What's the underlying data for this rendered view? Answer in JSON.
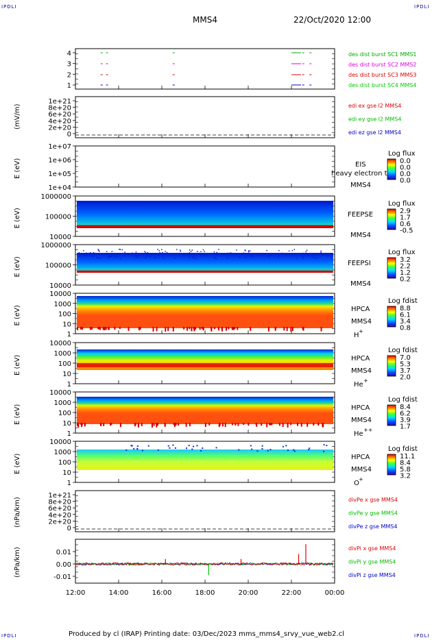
{
  "corner_label": "IPDLI",
  "header": {
    "spacecraft": "MMS4",
    "datetime": "22/Oct/2020 12:00"
  },
  "footer": {
    "text": "Produced by cl (IRAP)   Printing date: 03/Dec/2023   mms_mms4_srvy_vue_web2.cl"
  },
  "x_axis": {
    "ticks": [
      "12:00",
      "14:00",
      "16:00",
      "18:00",
      "20:00",
      "22:00",
      "00:00"
    ]
  },
  "chart_data": [
    {
      "type": "scatter",
      "yticks": [
        "4",
        "3",
        "2",
        "1"
      ],
      "legend": [
        {
          "name": "des dist burst SC1 MMS1",
          "color": "#00aa00"
        },
        {
          "name": "des dist burst SC2 MMS2",
          "color": "#dd00dd"
        },
        {
          "name": "des dist burst SC3 MMS3",
          "color": "#dd0000"
        },
        {
          "name": "des dist burst SC4 MMS4",
          "color": "#00cc00"
        }
      ],
      "bursts": [
        {
          "x": [
            "13:10",
            "13:25",
            "16:30",
            "22:00",
            "22:30",
            "22:50"
          ]
        }
      ]
    },
    {
      "type": "line",
      "ylabel": "(mV/m)",
      "yticks": [
        "1e+21",
        "8e+20",
        "6e+20",
        "4e+20",
        "2e+20",
        "0"
      ],
      "legend": [
        {
          "name": "edi ex gse l2 MMS4",
          "color": "#dd0000"
        },
        {
          "name": "edi ey gse l2 MMS4",
          "color": "#00bb00"
        },
        {
          "name": "edi ez gse l2 MMS4",
          "color": "#0000cc"
        }
      ]
    },
    {
      "type": "heatmap",
      "ylabel": "E (eV)",
      "yticks": [
        "1e+07",
        "1e+06",
        "1e+05",
        "1e+04"
      ],
      "instrument": "EIS",
      "note": "heavy electron t",
      "sc": "MMS4",
      "cbar_title": "Log flux",
      "cbar_ticks": [
        "0.0",
        "0.0",
        "0.0",
        "0.0"
      ]
    },
    {
      "type": "heatmap",
      "ylabel": "E (eV)",
      "yticks": [
        "1000000",
        "100000",
        "10000"
      ],
      "instrument": "FEEPSE",
      "sc": "MMS4",
      "cbar_title": "Log flux",
      "cbar_ticks": [
        "2.9",
        "1.7",
        "0.6",
        "-0.5"
      ]
    },
    {
      "type": "heatmap",
      "ylabel": "E (eV)",
      "yticks": [
        "1000000",
        "100000",
        "10000"
      ],
      "instrument": "FEEPSI",
      "sc": "MMS4",
      "cbar_title": "Log flux",
      "cbar_ticks": [
        "3.2",
        "2.2",
        "1.2",
        "0.2"
      ]
    },
    {
      "type": "heatmap",
      "ylabel": "E (eV)",
      "yticks": [
        "10000",
        "1000",
        "100",
        "10",
        "1"
      ],
      "instrument": "HPCA",
      "sc": "MMS4",
      "species": "H",
      "charge": "+",
      "cbar_title": "Log fdist",
      "cbar_ticks": [
        "8.8",
        "6.1",
        "3.4",
        "0.8"
      ]
    },
    {
      "type": "heatmap",
      "ylabel": "E (eV)",
      "yticks": [
        "10000",
        "1000",
        "100",
        "10",
        "1"
      ],
      "instrument": "HPCA",
      "sc": "MMS4",
      "species": "He",
      "charge": "+",
      "cbar_title": "Log fdist",
      "cbar_ticks": [
        "7.0",
        "5.3",
        "3.7",
        "2.0"
      ]
    },
    {
      "type": "heatmap",
      "ylabel": "E (eV)",
      "yticks": [
        "10000",
        "1000",
        "100",
        "10",
        "1"
      ],
      "instrument": "HPCA",
      "sc": "MMS4",
      "species": "He",
      "charge": "++",
      "cbar_title": "Log fdist",
      "cbar_ticks": [
        "8.4",
        "6.2",
        "3.9",
        "1.7"
      ]
    },
    {
      "type": "heatmap",
      "ylabel": "E (eV)",
      "yticks": [
        "10000",
        "1000",
        "100",
        "10",
        "1"
      ],
      "instrument": "HPCA",
      "sc": "MMS4",
      "species": "O",
      "charge": "+",
      "cbar_title": "Log fdist",
      "cbar_ticks": [
        "11.1",
        "8.4",
        "5.8",
        "3.2"
      ]
    },
    {
      "type": "line",
      "ylabel": "(nPa/km)",
      "yticks": [
        "1e+21",
        "8e+20",
        "6e+20",
        "4e+20",
        "2e+20",
        "0"
      ],
      "legend": [
        {
          "name": "divPe x gse MMS4",
          "color": "#dd0000"
        },
        {
          "name": "divPe y gse MMS4",
          "color": "#00bb00"
        },
        {
          "name": "divPe z gse MMS4",
          "color": "#0000cc"
        }
      ]
    },
    {
      "type": "line",
      "ylabel": "(nPa/km)",
      "yticks": [
        "0.01",
        "0.00",
        "-0.01"
      ],
      "ylim": [
        -0.015,
        0.018
      ],
      "legend": [
        {
          "name": "divPi x gse MMS4",
          "color": "#dd0000"
        },
        {
          "name": "divPi y gse MMS4",
          "color": "#00bb00"
        },
        {
          "name": "divPi z gse MMS4",
          "color": "#0000cc"
        }
      ],
      "spikes": [
        {
          "x": "16:10",
          "y": 0.004
        },
        {
          "x": "18:10",
          "y": -0.009
        },
        {
          "x": "19:40",
          "y": 0.004
        },
        {
          "x": "22:40",
          "y": 0.016
        },
        {
          "x": "22:20",
          "y": 0.008
        }
      ]
    }
  ]
}
